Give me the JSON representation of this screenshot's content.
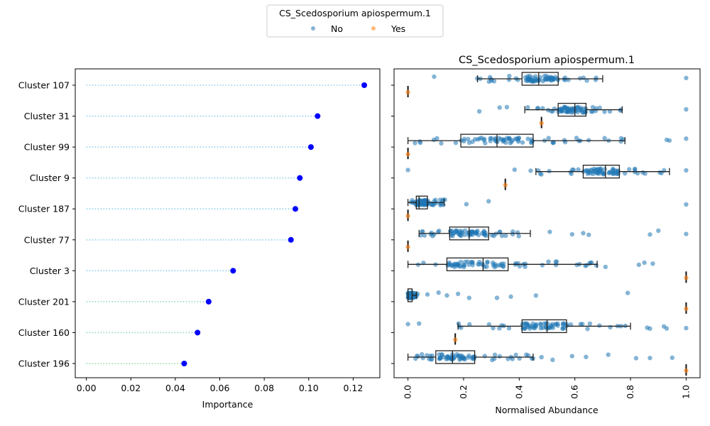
{
  "legend": {
    "title": "CS_Scedosporium apiospermum.1",
    "entries": [
      {
        "label": "No",
        "color": "#1f77b4"
      },
      {
        "label": "Yes",
        "color": "#ff7f0e"
      }
    ]
  },
  "chart_data": [
    {
      "type": "scatter",
      "subtype": "lollipop",
      "title": "",
      "xlabel": "Importance",
      "ylabel": "",
      "xlim": [
        -0.005,
        0.132
      ],
      "xticks": [
        "0.00",
        "0.02",
        "0.04",
        "0.06",
        "0.08",
        "0.10",
        "0.12"
      ],
      "xtick_values": [
        0,
        0.02,
        0.04,
        0.06,
        0.08,
        0.1,
        0.12
      ],
      "categories": [
        "Cluster 107",
        "Cluster 31",
        "Cluster 99",
        "Cluster 9",
        "Cluster 187",
        "Cluster 77",
        "Cluster 3",
        "Cluster 201",
        "Cluster 160",
        "Cluster 196"
      ],
      "values": [
        0.125,
        0.104,
        0.101,
        0.096,
        0.094,
        0.092,
        0.066,
        0.055,
        0.05,
        0.044
      ],
      "marker_color": "#0000ff",
      "stem_color": "#87ceeb",
      "grid": false
    },
    {
      "type": "boxplot",
      "title": "CS_Scedosporium apiospermum.1",
      "xlabel": "Normalised Abundance",
      "ylabel": "",
      "xlim": [
        -0.05,
        1.05
      ],
      "xticks": [
        "0.0",
        "0.2",
        "0.4",
        "0.6",
        "0.8",
        "1.0"
      ],
      "xtick_values": [
        0,
        0.2,
        0.4,
        0.6,
        0.8,
        1.0
      ],
      "hue": "CS_Scedosporium apiospermum.1",
      "categories": [
        "Cluster 107",
        "Cluster 31",
        "Cluster 99",
        "Cluster 9",
        "Cluster 187",
        "Cluster 77",
        "Cluster 3",
        "Cluster 201",
        "Cluster 160",
        "Cluster 196"
      ],
      "series": [
        {
          "name": "No",
          "color": "#1f77b4",
          "boxes": [
            {
              "q1": 0.41,
              "median": 0.47,
              "q3": 0.54,
              "whislo": 0.25,
              "whishi": 0.7,
              "spread": [
                0.09,
                0.82
              ],
              "outliers": [
                1.0
              ]
            },
            {
              "q1": 0.54,
              "median": 0.6,
              "q3": 0.64,
              "whislo": 0.42,
              "whishi": 0.77,
              "spread": [
                0.0,
                0.82
              ],
              "outliers": [
                1.0
              ]
            },
            {
              "q1": 0.19,
              "median": 0.32,
              "q3": 0.45,
              "whislo": 0.0,
              "whishi": 0.78,
              "spread": [
                0.0,
                0.78
              ],
              "outliers": [
                0.93,
                0.94,
                1.0
              ]
            },
            {
              "q1": 0.63,
              "median": 0.71,
              "q3": 0.76,
              "whislo": 0.46,
              "whishi": 0.94,
              "spread": [
                0.38,
                0.94
              ],
              "outliers": [
                0.0,
                1.0
              ]
            },
            {
              "q1": 0.03,
              "median": 0.04,
              "q3": 0.07,
              "whislo": 0.0,
              "whishi": 0.13,
              "spread": [
                0.0,
                0.17
              ],
              "outliers": [
                0.21,
                0.29,
                1.0
              ]
            },
            {
              "q1": 0.15,
              "median": 0.22,
              "q3": 0.29,
              "whislo": 0.04,
              "whishi": 0.44,
              "spread": [
                0.04,
                0.44
              ],
              "outliers": [
                0.51,
                0.59,
                0.63,
                0.65,
                0.87,
                0.9,
                1.0
              ]
            },
            {
              "q1": 0.14,
              "median": 0.27,
              "q3": 0.36,
              "whislo": 0.0,
              "whishi": 0.68,
              "spread": [
                0.0,
                0.68
              ],
              "outliers": [
                0.71,
                0.83,
                0.85,
                0.88
              ]
            },
            {
              "q1": 0.0,
              "median": 0.0,
              "q3": 0.015,
              "whislo": 0.0,
              "whishi": 0.03,
              "spread": [
                0.0,
                0.04
              ],
              "outliers": [
                0.07,
                0.11,
                0.14,
                0.18,
                0.22,
                0.32,
                0.37,
                0.46,
                0.79
              ]
            },
            {
              "q1": 0.41,
              "median": 0.5,
              "q3": 0.57,
              "whislo": 0.18,
              "whishi": 0.8,
              "spread": [
                0.17,
                0.8
              ],
              "outliers": [
                0.0,
                0.04,
                0.86,
                0.87,
                0.92,
                0.93,
                1.0
              ]
            },
            {
              "q1": 0.1,
              "median": 0.16,
              "q3": 0.24,
              "whislo": 0.0,
              "whishi": 0.45,
              "spread": [
                0.0,
                0.45
              ],
              "outliers": [
                0.48,
                0.52,
                0.59,
                0.64,
                0.72,
                0.82,
                0.87,
                0.95
              ]
            }
          ]
        },
        {
          "name": "Yes",
          "color": "#ff7f0e",
          "values": [
            0.0,
            0.48,
            0.0,
            0.35,
            0.0,
            0.0,
            1.0,
            1.0,
            0.17,
            1.0
          ]
        }
      ],
      "grid": false
    }
  ]
}
